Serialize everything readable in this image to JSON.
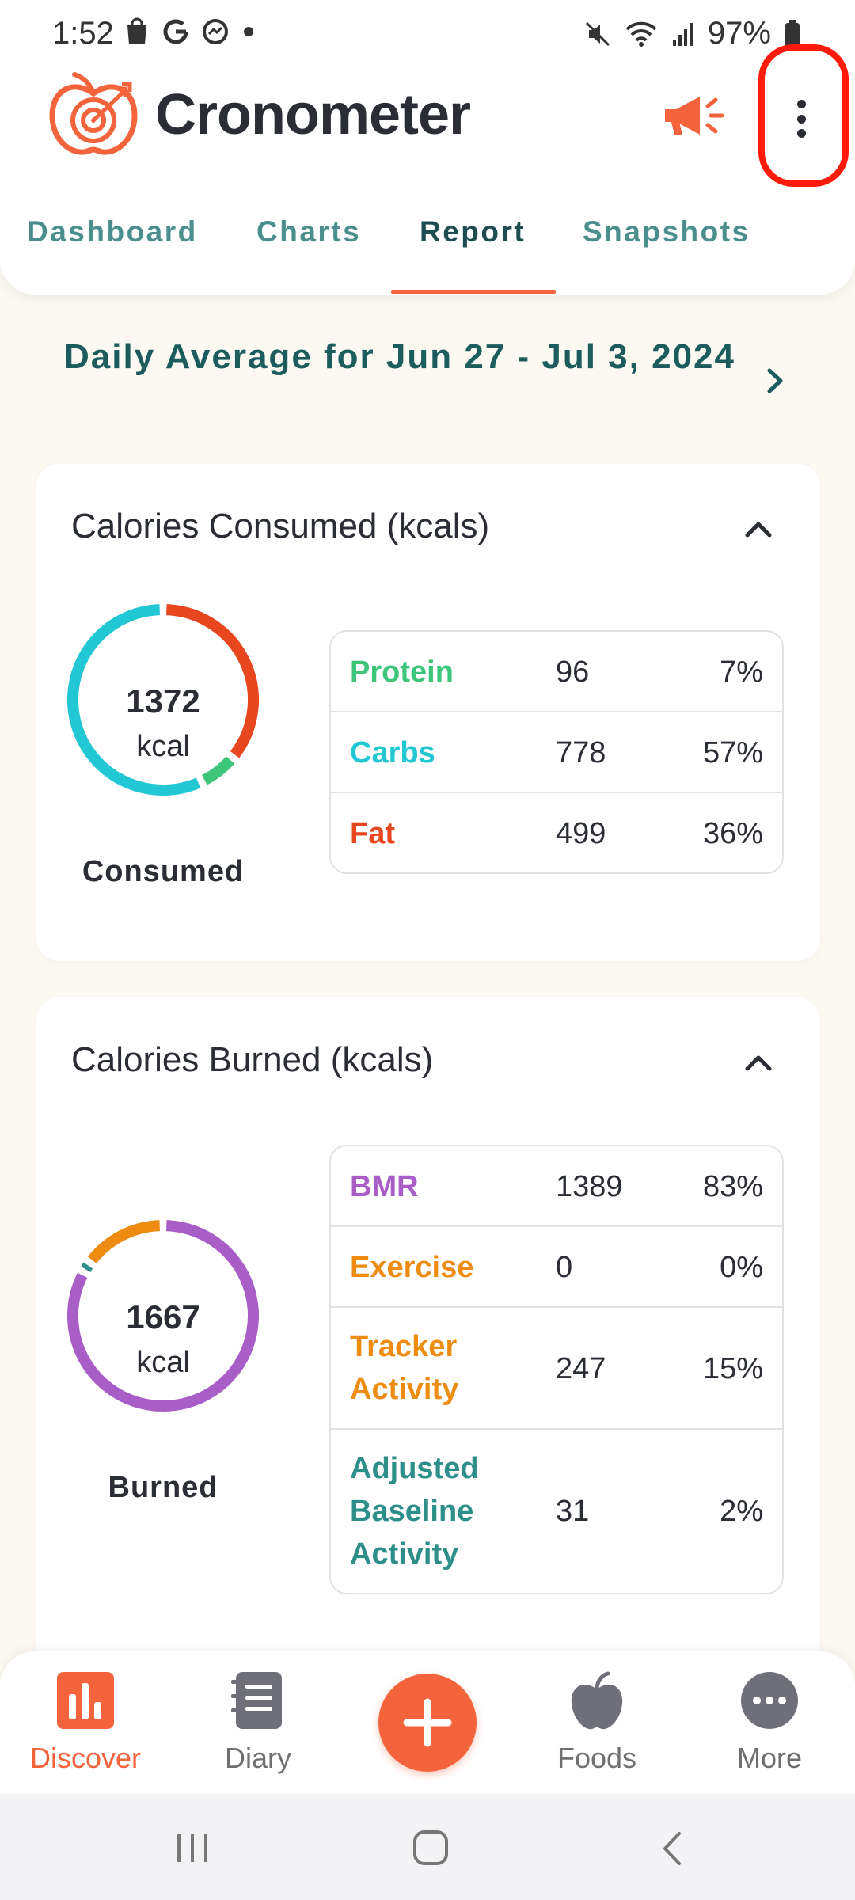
{
  "status_bar": {
    "time": "1:52",
    "battery": "97%",
    "left_icons": [
      "shopping-bag-icon",
      "google-icon",
      "messenger-icon",
      "dot-icon"
    ],
    "right_icons": [
      "mute-icon",
      "wifi-icon",
      "signal-icon",
      "battery-icon"
    ]
  },
  "header": {
    "app_name": "Cronometer",
    "accent_color": "#f4643c",
    "highlight_color": "#ff1a0a"
  },
  "tabs": [
    {
      "label": "Dashboard",
      "active": false
    },
    {
      "label": "Charts",
      "active": false
    },
    {
      "label": "Report",
      "active": true
    },
    {
      "label": "Snapshots",
      "active": false
    }
  ],
  "report": {
    "date_range": "Daily Average for Jun 27 - Jul 3, 2024"
  },
  "consumed_card": {
    "title": "Calories Consumed (kcals)",
    "total": "1372",
    "unit": "kcal",
    "caption": "Consumed",
    "rows": [
      {
        "name": "Protein",
        "value": "96",
        "percent": "7%",
        "fraction": 0.07,
        "color": "#3dc67a"
      },
      {
        "name": "Carbs",
        "value": "778",
        "percent": "57%",
        "fraction": 0.57,
        "color": "#22c7d4"
      },
      {
        "name": "Fat",
        "value": "499",
        "percent": "36%",
        "fraction": 0.36,
        "color": "#e8461e"
      }
    ]
  },
  "burned_card": {
    "title": "Calories Burned (kcals)",
    "total": "1667",
    "unit": "kcal",
    "caption": "Burned",
    "rows": [
      {
        "name": "BMR",
        "value": "1389",
        "percent": "83%",
        "fraction": 0.83,
        "color": "#a95ec7"
      },
      {
        "name": "Exercise",
        "value": "0",
        "percent": "0%",
        "fraction": 0.0,
        "color": "#ee8c12"
      },
      {
        "name": "Tracker Activity",
        "value": "247",
        "percent": "15%",
        "fraction": 0.15,
        "color": "#ee8c12"
      },
      {
        "name": "Adjusted Baseline Activity",
        "value": "31",
        "percent": "2%",
        "fraction": 0.02,
        "color": "#2e8f8a"
      }
    ]
  },
  "bottom_nav": [
    {
      "label": "Discover",
      "icon": "bar-chart-icon",
      "active": true
    },
    {
      "label": "Diary",
      "icon": "notebook-icon",
      "active": false
    },
    {
      "label": "Foods",
      "icon": "apple-icon",
      "active": false
    },
    {
      "label": "More",
      "icon": "more-dots-icon",
      "active": false
    }
  ]
}
